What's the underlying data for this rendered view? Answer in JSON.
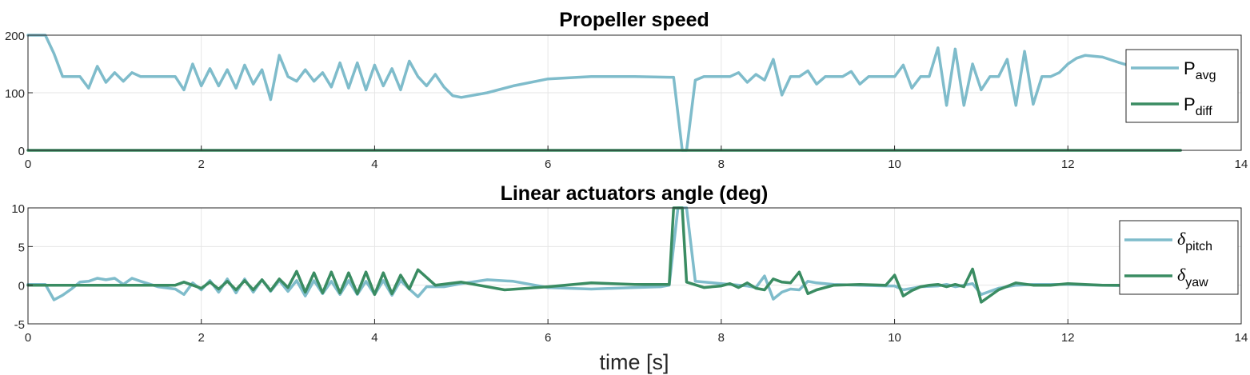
{
  "chart_data": [
    {
      "type": "line",
      "title": "Propeller speed",
      "xlabel": "",
      "ylabel": "",
      "xlim": [
        0,
        14
      ],
      "ylim": [
        0,
        200
      ],
      "xticks": [
        "0",
        "2",
        "4",
        "6",
        "8",
        "10",
        "12",
        "14"
      ],
      "yticks": [
        "0",
        "100",
        "200"
      ],
      "grid": true,
      "legend": "right",
      "series": [
        {
          "name": "P",
          "subscript": "avg",
          "color": "#7fbccb",
          "x": [
            0,
            0.2,
            0.3,
            0.4,
            0.6,
            0.7,
            0.8,
            0.9,
            1.0,
            1.1,
            1.2,
            1.3,
            1.5,
            1.7,
            1.8,
            1.9,
            2.0,
            2.1,
            2.2,
            2.3,
            2.4,
            2.5,
            2.6,
            2.7,
            2.8,
            2.9,
            3.0,
            3.1,
            3.2,
            3.3,
            3.4,
            3.5,
            3.6,
            3.7,
            3.8,
            3.9,
            4.0,
            4.1,
            4.2,
            4.3,
            4.4,
            4.5,
            4.6,
            4.7,
            4.8,
            4.9,
            5.0,
            5.3,
            5.6,
            6.0,
            6.5,
            7.0,
            7.4,
            7.45,
            7.55,
            7.6,
            7.7,
            7.8,
            8.0,
            8.1,
            8.2,
            8.3,
            8.4,
            8.5,
            8.6,
            8.7,
            8.8,
            8.9,
            9.0,
            9.1,
            9.2,
            9.4,
            9.5,
            9.6,
            9.7,
            9.8,
            9.9,
            10.0,
            10.1,
            10.2,
            10.3,
            10.4,
            10.5,
            10.6,
            10.7,
            10.8,
            10.9,
            11.0,
            11.1,
            11.2,
            11.3,
            11.4,
            11.5,
            11.6,
            11.7,
            11.8,
            11.9,
            12.0,
            12.1,
            12.2,
            12.4,
            12.6,
            12.8,
            13.0,
            13.3
          ],
          "y": [
            200,
            200,
            168,
            128,
            128,
            108,
            146,
            118,
            135,
            120,
            135,
            128,
            128,
            128,
            105,
            150,
            112,
            142,
            112,
            140,
            108,
            148,
            115,
            140,
            88,
            165,
            128,
            120,
            140,
            120,
            135,
            110,
            152,
            108,
            152,
            105,
            148,
            112,
            142,
            105,
            155,
            128,
            112,
            132,
            110,
            95,
            92,
            100,
            112,
            124,
            128,
            128,
            127,
            127,
            0,
            0,
            122,
            128,
            128,
            128,
            135,
            118,
            132,
            122,
            158,
            96,
            128,
            128,
            138,
            115,
            128,
            128,
            137,
            115,
            128,
            128,
            128,
            128,
            148,
            108,
            128,
            128,
            178,
            78,
            176,
            78,
            150,
            105,
            128,
            128,
            158,
            78,
            172,
            80,
            128,
            128,
            135,
            150,
            160,
            165,
            162,
            152,
            143,
            138,
            132
          ]
        },
        {
          "name": "P",
          "subscript": "diff",
          "color": "#3a8c62",
          "x": [
            0,
            13.3
          ],
          "y": [
            0,
            0
          ]
        }
      ]
    },
    {
      "type": "line",
      "title": "Linear actuators angle (deg)",
      "xlabel": "time [s]",
      "ylabel": "",
      "xlim": [
        0,
        14
      ],
      "ylim": [
        -5,
        10
      ],
      "xticks": [
        "0",
        "2",
        "4",
        "6",
        "8",
        "10",
        "12",
        "14"
      ],
      "yticks": [
        "-5",
        "0",
        "5",
        "10"
      ],
      "grid": true,
      "legend": "right",
      "series": [
        {
          "name": "δ",
          "subscript": "pitch",
          "color": "#7fbccb",
          "x": [
            0,
            0.2,
            0.3,
            0.4,
            0.5,
            0.6,
            0.7,
            0.8,
            0.9,
            1.0,
            1.1,
            1.2,
            1.3,
            1.5,
            1.7,
            1.8,
            1.9,
            2.0,
            2.1,
            2.2,
            2.3,
            2.4,
            2.5,
            2.6,
            2.7,
            2.8,
            2.9,
            3.0,
            3.1,
            3.2,
            3.3,
            3.4,
            3.5,
            3.6,
            3.7,
            3.8,
            3.9,
            4.0,
            4.1,
            4.2,
            4.3,
            4.4,
            4.5,
            4.6,
            4.8,
            5.0,
            5.3,
            5.6,
            6.0,
            6.5,
            7.0,
            7.3,
            7.4,
            7.5,
            7.6,
            7.7,
            8.0,
            8.3,
            8.4,
            8.5,
            8.6,
            8.7,
            8.8,
            8.9,
            9.0,
            9.1,
            9.3,
            9.6,
            9.9,
            10.0,
            10.1,
            10.3,
            10.5,
            10.6,
            10.7,
            10.8,
            10.9,
            11.0,
            11.2,
            11.4,
            11.6,
            11.8,
            12.0,
            12.4,
            12.8,
            13.3
          ],
          "y": [
            0.1,
            0.1,
            -1.9,
            -1.3,
            -0.5,
            0.4,
            0.5,
            0.9,
            0.7,
            0.9,
            0.1,
            0.9,
            0.5,
            -0.2,
            -0.5,
            -1.2,
            0.3,
            -0.6,
            0.6,
            -0.9,
            0.8,
            -1.0,
            0.8,
            -0.9,
            0.7,
            -0.8,
            0.6,
            -0.8,
            0.6,
            -1.4,
            0.6,
            -1.1,
            0.5,
            -1.2,
            0.6,
            -1.2,
            0.5,
            -1.2,
            0.6,
            -1.3,
            0.6,
            -0.5,
            -1.5,
            -0.2,
            -0.2,
            0.2,
            0.7,
            0.5,
            -0.3,
            -0.5,
            -0.3,
            -0.2,
            0.0,
            10.0,
            10.0,
            0.5,
            0.2,
            -0.1,
            -0.3,
            1.2,
            -1.8,
            -0.9,
            -0.5,
            -0.6,
            0.5,
            0.3,
            0.1,
            0.0,
            -0.1,
            -0.1,
            -0.6,
            -0.2,
            -0.1,
            0.1,
            -0.2,
            0.0,
            0.2,
            -1.2,
            -0.4,
            0.0,
            0.1,
            0.1,
            0.1,
            0.0,
            -0.1,
            -0.1
          ]
        },
        {
          "name": "δ",
          "subscript": "yaw",
          "color": "#3a8c62",
          "x": [
            0,
            1.5,
            1.7,
            1.8,
            1.9,
            2.0,
            2.1,
            2.2,
            2.3,
            2.4,
            2.5,
            2.6,
            2.7,
            2.8,
            2.9,
            3.0,
            3.1,
            3.2,
            3.3,
            3.4,
            3.5,
            3.6,
            3.7,
            3.8,
            3.9,
            4.0,
            4.1,
            4.2,
            4.3,
            4.4,
            4.5,
            4.7,
            5.0,
            5.5,
            6.0,
            6.5,
            7.0,
            7.3,
            7.4,
            7.45,
            7.55,
            7.6,
            7.8,
            8.0,
            8.1,
            8.2,
            8.3,
            8.4,
            8.5,
            8.6,
            8.7,
            8.8,
            8.9,
            9.0,
            9.1,
            9.3,
            9.6,
            9.9,
            10.0,
            10.1,
            10.2,
            10.3,
            10.4,
            10.5,
            10.6,
            10.7,
            10.8,
            10.9,
            11.0,
            11.2,
            11.4,
            11.6,
            11.8,
            12.0,
            12.4,
            12.8,
            13.3
          ],
          "y": [
            0.0,
            0.0,
            0.0,
            0.4,
            0.0,
            -0.4,
            0.4,
            -0.5,
            0.5,
            -0.6,
            0.6,
            -0.6,
            0.7,
            -0.7,
            0.8,
            -0.3,
            1.8,
            -0.9,
            1.6,
            -1.0,
            1.7,
            -1.0,
            1.6,
            -1.1,
            1.7,
            -1.2,
            1.6,
            -1.1,
            1.3,
            -0.5,
            2.0,
            0.0,
            0.4,
            -0.6,
            -0.2,
            0.3,
            0.1,
            0.1,
            0.1,
            10.0,
            10.0,
            0.4,
            -0.3,
            -0.1,
            0.2,
            -0.3,
            0.3,
            -0.4,
            -0.6,
            0.8,
            0.4,
            0.3,
            1.7,
            -1.1,
            -0.6,
            0.0,
            0.1,
            0.0,
            1.3,
            -1.4,
            -0.7,
            -0.2,
            0.0,
            0.1,
            -0.2,
            0.1,
            -0.2,
            2.1,
            -2.2,
            -0.6,
            0.3,
            0.0,
            0.0,
            0.2,
            0.0,
            0.0,
            0.0
          ]
        }
      ]
    }
  ]
}
